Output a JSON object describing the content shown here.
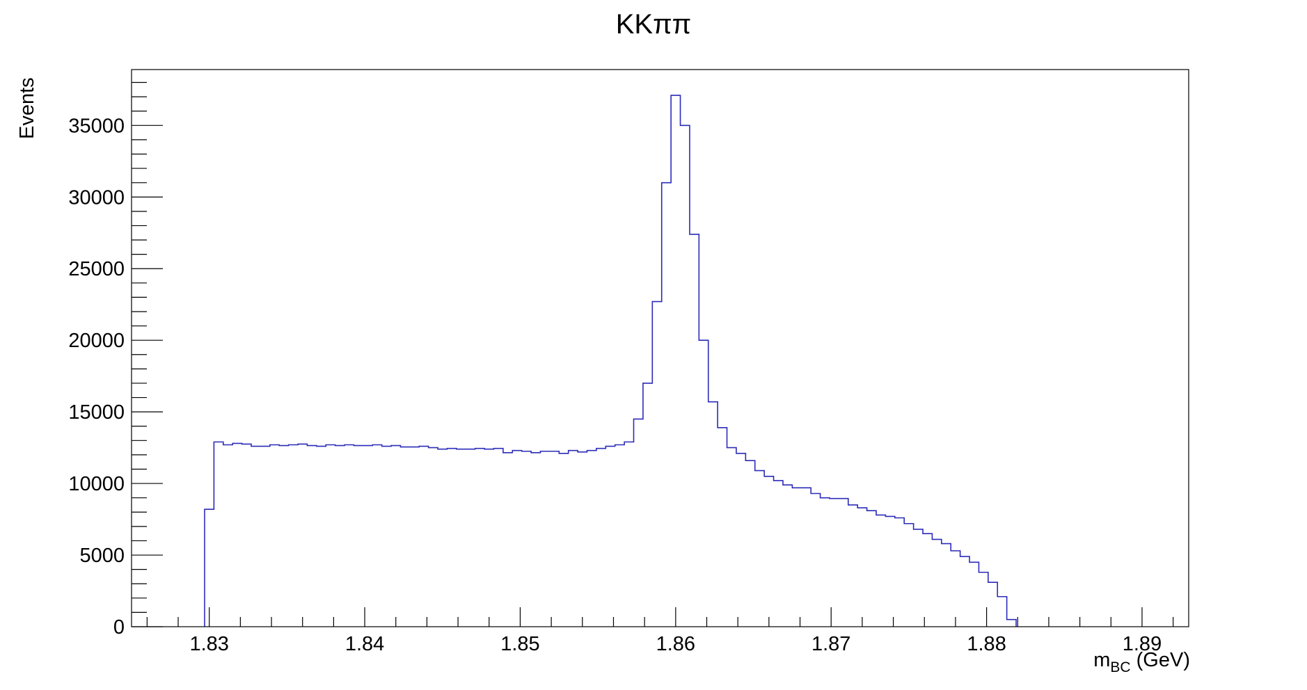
{
  "chart_data": {
    "type": "histogram",
    "title": "KKππ",
    "xlabel": {
      "main": "m",
      "sub": "BC",
      "unit": " (GeV)"
    },
    "ylabel": "Events",
    "xlim": [
      1.825,
      1.893
    ],
    "ylim": [
      0,
      38900
    ],
    "xticks": [
      1.83,
      1.84,
      1.85,
      1.86,
      1.87,
      1.88,
      1.89
    ],
    "yticks": [
      0,
      5000,
      10000,
      15000,
      20000,
      25000,
      30000,
      35000
    ],
    "bin_width": 0.0006,
    "bin_start": 1.8297,
    "values": [
      8200,
      12900,
      12700,
      12800,
      12750,
      12600,
      12600,
      12700,
      12650,
      12700,
      12750,
      12650,
      12600,
      12700,
      12650,
      12700,
      12650,
      12650,
      12700,
      12600,
      12650,
      12550,
      12550,
      12600,
      12500,
      12400,
      12450,
      12400,
      12400,
      12450,
      12400,
      12450,
      12150,
      12300,
      12250,
      12150,
      12250,
      12250,
      12100,
      12300,
      12200,
      12300,
      12450,
      12600,
      12700,
      12900,
      14500,
      17000,
      22700,
      31000,
      37100,
      35000,
      27400,
      20000,
      15700,
      13900,
      12500,
      12100,
      11600,
      10900,
      10500,
      10200,
      9900,
      9700,
      9700,
      9300,
      9000,
      8950,
      8950,
      8500,
      8300,
      8100,
      7800,
      7700,
      7600,
      7200,
      6800,
      6500,
      6100,
      5800,
      5300,
      4900,
      4500,
      3800,
      3100,
      2100,
      500
    ],
    "grid": false,
    "line_color": "#2b2bb8"
  }
}
